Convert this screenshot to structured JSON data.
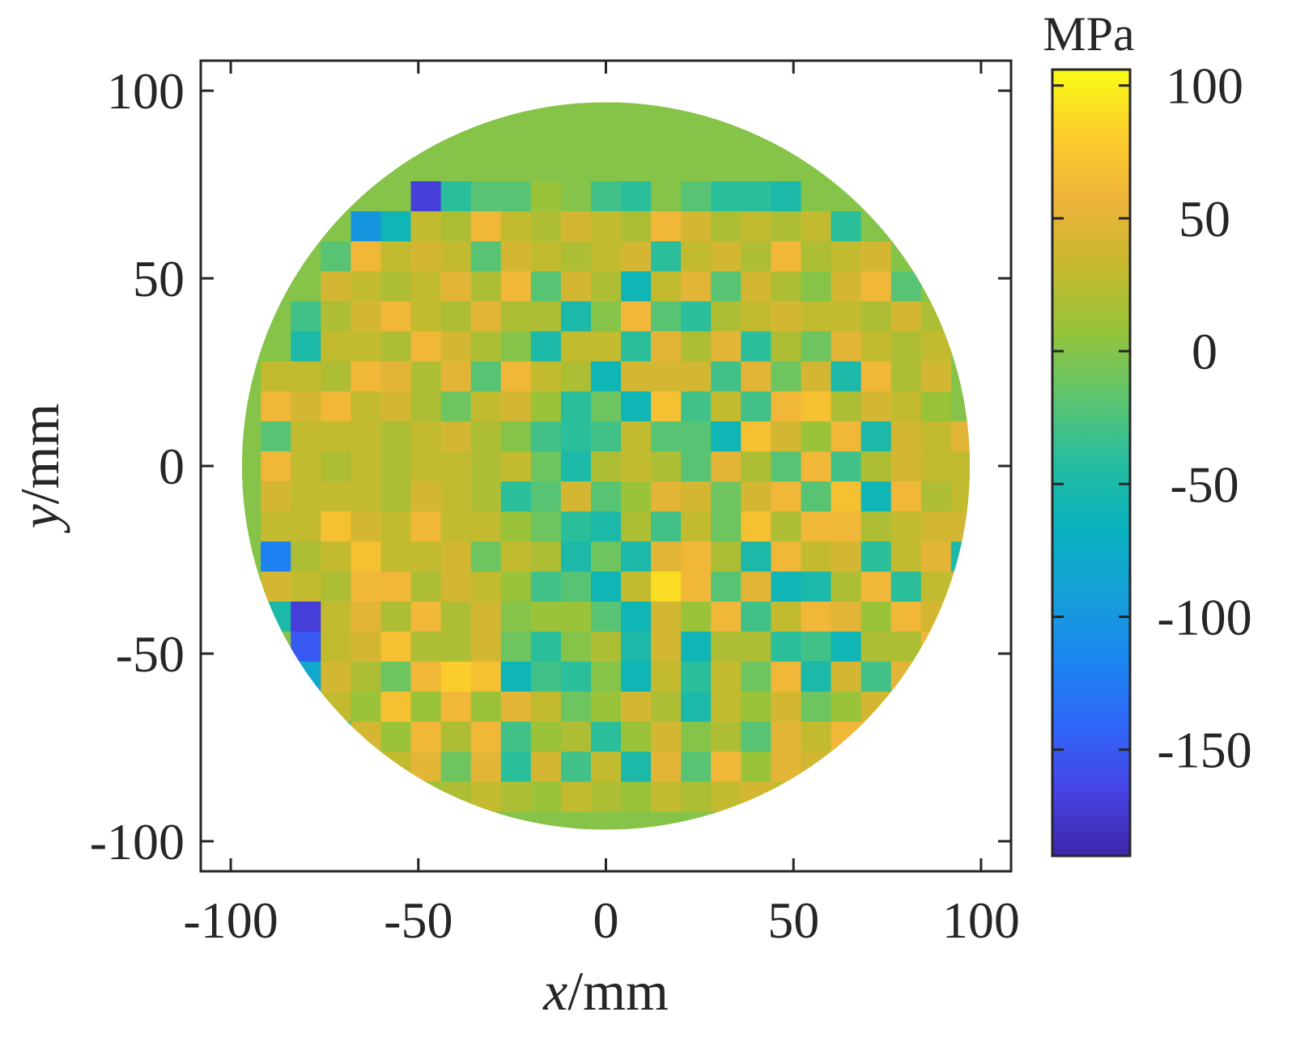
{
  "chart_data": {
    "type": "heatmap",
    "shape": "circular specimen stress map",
    "xlabel": {
      "italic": "x",
      "rest": "/mm"
    },
    "ylabel": {
      "italic": "y",
      "rest": "/mm"
    },
    "xlim": [
      -108,
      108
    ],
    "ylim": [
      -108,
      108
    ],
    "xticks": [
      -100,
      -50,
      0,
      50,
      100
    ],
    "yticks": [
      -100,
      -50,
      0,
      50,
      100
    ],
    "xtick_labels": [
      "-100",
      "-50",
      "0",
      "50",
      "100"
    ],
    "ytick_labels": [
      "-100",
      "-50",
      "0",
      "50",
      "100"
    ],
    "radius": 97,
    "grid_cell": 8,
    "grid_origin": [
      -100,
      -100
    ],
    "values": [
      [
        0,
        0,
        0,
        0,
        0,
        0,
        0,
        0,
        0,
        0,
        0,
        0,
        0,
        0,
        0,
        0,
        0,
        0,
        0,
        0,
        0,
        0,
        0,
        0,
        0,
        0
      ],
      [
        0,
        0,
        0,
        0,
        0,
        0,
        10,
        20,
        30,
        20,
        10,
        30,
        20,
        10,
        30,
        20,
        30,
        40,
        30,
        20,
        0,
        0,
        0,
        0,
        0,
        0
      ],
      [
        0,
        0,
        0,
        0,
        -20,
        30,
        50,
        -10,
        50,
        -40,
        40,
        -30,
        30,
        -50,
        50,
        -20,
        60,
        10,
        50,
        40,
        30,
        50,
        0,
        0,
        0,
        0
      ],
      [
        0,
        0,
        0,
        -40,
        40,
        10,
        60,
        20,
        60,
        -30,
        10,
        20,
        -40,
        10,
        40,
        0,
        20,
        -20,
        50,
        30,
        60,
        50,
        60,
        0,
        0,
        0
      ],
      [
        0,
        0,
        -60,
        30,
        10,
        70,
        10,
        60,
        10,
        50,
        30,
        -10,
        10,
        40,
        20,
        -50,
        30,
        10,
        40,
        -10,
        10,
        40,
        60,
        0,
        0,
        0
      ],
      [
        0,
        0,
        -80,
        40,
        20,
        -10,
        60,
        80,
        70,
        -60,
        -30,
        -40,
        0,
        -60,
        30,
        -40,
        30,
        -10,
        60,
        -50,
        40,
        -30,
        50,
        70,
        0,
        0
      ],
      [
        0,
        0,
        -150,
        30,
        40,
        70,
        20,
        20,
        40,
        -10,
        -40,
        0,
        20,
        -50,
        40,
        -60,
        20,
        20,
        -40,
        -30,
        -60,
        20,
        20,
        60,
        0,
        0
      ],
      [
        0,
        -50,
        -170,
        30,
        50,
        20,
        60,
        20,
        40,
        0,
        10,
        10,
        -20,
        -60,
        40,
        10,
        60,
        -30,
        30,
        60,
        50,
        10,
        60,
        40,
        0,
        0
      ],
      [
        0,
        40,
        30,
        20,
        60,
        60,
        20,
        40,
        30,
        10,
        -30,
        -20,
        -60,
        30,
        90,
        60,
        -20,
        50,
        -60,
        -50,
        20,
        60,
        -40,
        30,
        40,
        0
      ],
      [
        0,
        -120,
        20,
        30,
        70,
        30,
        30,
        40,
        -10,
        30,
        20,
        -50,
        -10,
        -50,
        50,
        60,
        20,
        -50,
        60,
        30,
        40,
        -40,
        30,
        50,
        -50,
        0
      ],
      [
        0,
        30,
        30,
        70,
        40,
        30,
        60,
        30,
        30,
        10,
        -10,
        -40,
        -50,
        20,
        -30,
        30,
        -10,
        70,
        20,
        60,
        60,
        20,
        30,
        40,
        40,
        0
      ],
      [
        0,
        40,
        30,
        30,
        30,
        20,
        40,
        30,
        20,
        -40,
        -20,
        40,
        -20,
        10,
        50,
        40,
        -10,
        40,
        60,
        -20,
        70,
        -60,
        60,
        20,
        30,
        0
      ],
      [
        0,
        60,
        30,
        20,
        30,
        20,
        30,
        30,
        20,
        30,
        -10,
        -50,
        20,
        30,
        20,
        -20,
        50,
        20,
        -20,
        60,
        -30,
        20,
        40,
        30,
        30,
        0
      ],
      [
        0,
        -20,
        30,
        30,
        30,
        20,
        30,
        40,
        20,
        0,
        -30,
        -40,
        -30,
        30,
        -20,
        -20,
        -60,
        70,
        40,
        10,
        60,
        -50,
        40,
        30,
        50,
        0
      ],
      [
        0,
        60,
        40,
        60,
        30,
        40,
        20,
        -10,
        30,
        40,
        10,
        -40,
        -10,
        -60,
        70,
        -30,
        30,
        -30,
        60,
        70,
        20,
        40,
        30,
        10,
        0,
        0
      ],
      [
        0,
        30,
        30,
        20,
        60,
        50,
        20,
        50,
        -20,
        60,
        30,
        20,
        -60,
        40,
        40,
        40,
        -30,
        50,
        -10,
        40,
        -50,
        60,
        20,
        40,
        0,
        0
      ],
      [
        0,
        0,
        -50,
        30,
        30,
        20,
        60,
        40,
        20,
        0,
        -50,
        30,
        30,
        -40,
        50,
        20,
        50,
        -40,
        20,
        -10,
        50,
        30,
        20,
        30,
        0,
        0
      ],
      [
        0,
        0,
        -30,
        20,
        40,
        60,
        30,
        20,
        50,
        20,
        20,
        -50,
        0,
        60,
        -20,
        -40,
        20,
        30,
        40,
        30,
        30,
        20,
        40,
        20,
        0,
        0
      ],
      [
        0,
        0,
        0,
        40,
        30,
        20,
        30,
        50,
        20,
        60,
        -20,
        40,
        20,
        -60,
        30,
        50,
        -20,
        40,
        20,
        0,
        40,
        60,
        -20,
        0,
        0,
        0
      ],
      [
        0,
        0,
        0,
        -20,
        60,
        30,
        40,
        30,
        -20,
        40,
        30,
        20,
        30,
        40,
        -40,
        30,
        40,
        20,
        60,
        20,
        30,
        40,
        0,
        0,
        0,
        0
      ],
      [
        0,
        0,
        0,
        0,
        -100,
        -60,
        30,
        20,
        60,
        30,
        20,
        40,
        30,
        20,
        60,
        40,
        20,
        30,
        20,
        30,
        -40,
        0,
        0,
        0,
        0,
        0
      ],
      [
        0,
        0,
        0,
        0,
        0,
        0,
        -170,
        -40,
        -20,
        -20,
        10,
        0,
        -30,
        -40,
        0,
        -20,
        -40,
        -40,
        -50,
        0,
        0,
        0,
        0,
        0,
        0,
        0
      ],
      [
        0,
        0,
        0,
        0,
        0,
        0,
        0,
        0,
        0,
        0,
        0,
        0,
        0,
        0,
        0,
        0,
        0,
        0,
        0,
        0,
        0,
        0,
        0,
        0,
        0,
        0
      ],
      [
        0,
        0,
        0,
        0,
        0,
        0,
        0,
        0,
        0,
        0,
        0,
        0,
        0,
        0,
        0,
        0,
        0,
        0,
        0,
        0,
        0,
        0,
        0,
        0,
        0,
        0
      ],
      [
        0,
        0,
        0,
        0,
        0,
        0,
        0,
        0,
        0,
        0,
        0,
        0,
        0,
        0,
        0,
        0,
        0,
        0,
        0,
        0,
        0,
        0,
        0,
        0,
        0,
        0
      ],
      [
        0,
        0,
        0,
        0,
        0,
        0,
        0,
        0,
        0,
        0,
        0,
        0,
        0,
        0,
        0,
        0,
        0,
        0,
        0,
        0,
        0,
        0,
        0,
        0,
        0,
        0
      ]
    ],
    "colorbar": {
      "unit": "MPa",
      "min": -190,
      "max": 106,
      "ticks": [
        100,
        50,
        0,
        -50,
        -100,
        -150
      ],
      "tick_labels": [
        "100",
        "50",
        "0",
        "-50",
        "-100",
        "-150"
      ],
      "colormap": "parula",
      "colors": [
        "#3e26a8",
        "#4743e5",
        "#2f67f8",
        "#1a86f0",
        "#169fd8",
        "#08b2bf",
        "#26bd9f",
        "#5ec56e",
        "#95c43a",
        "#c6b92e",
        "#eeb33b",
        "#fbcd2b",
        "#f9fb15"
      ]
    }
  }
}
